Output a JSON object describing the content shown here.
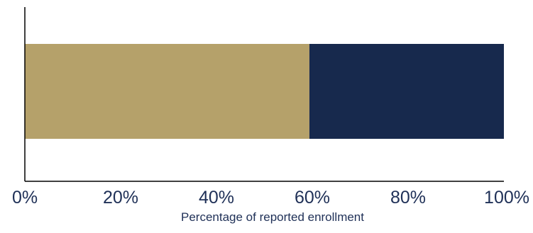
{
  "chart_data": {
    "type": "bar",
    "orientation": "horizontal",
    "stacked": true,
    "percent": true,
    "categories": [
      ""
    ],
    "series": [
      {
        "values": [
          59.4
        ],
        "color": "#B5A16A"
      },
      {
        "values": [
          40.6
        ],
        "color": "#17294D"
      }
    ],
    "xlim": [
      0,
      100
    ],
    "x_ticks": [
      0,
      20,
      40,
      60,
      80,
      100
    ],
    "x_tick_labels": [
      "0%",
      "20%",
      "40%",
      "60%",
      "80%",
      "100%"
    ],
    "xlabel": "Percentage of reported enrollment",
    "ylabel": "",
    "title": "",
    "grid": false,
    "legend": "none",
    "colors": {
      "axis": "#000000",
      "tick_text": "#1F3057",
      "label_text": "#1F3057"
    }
  }
}
